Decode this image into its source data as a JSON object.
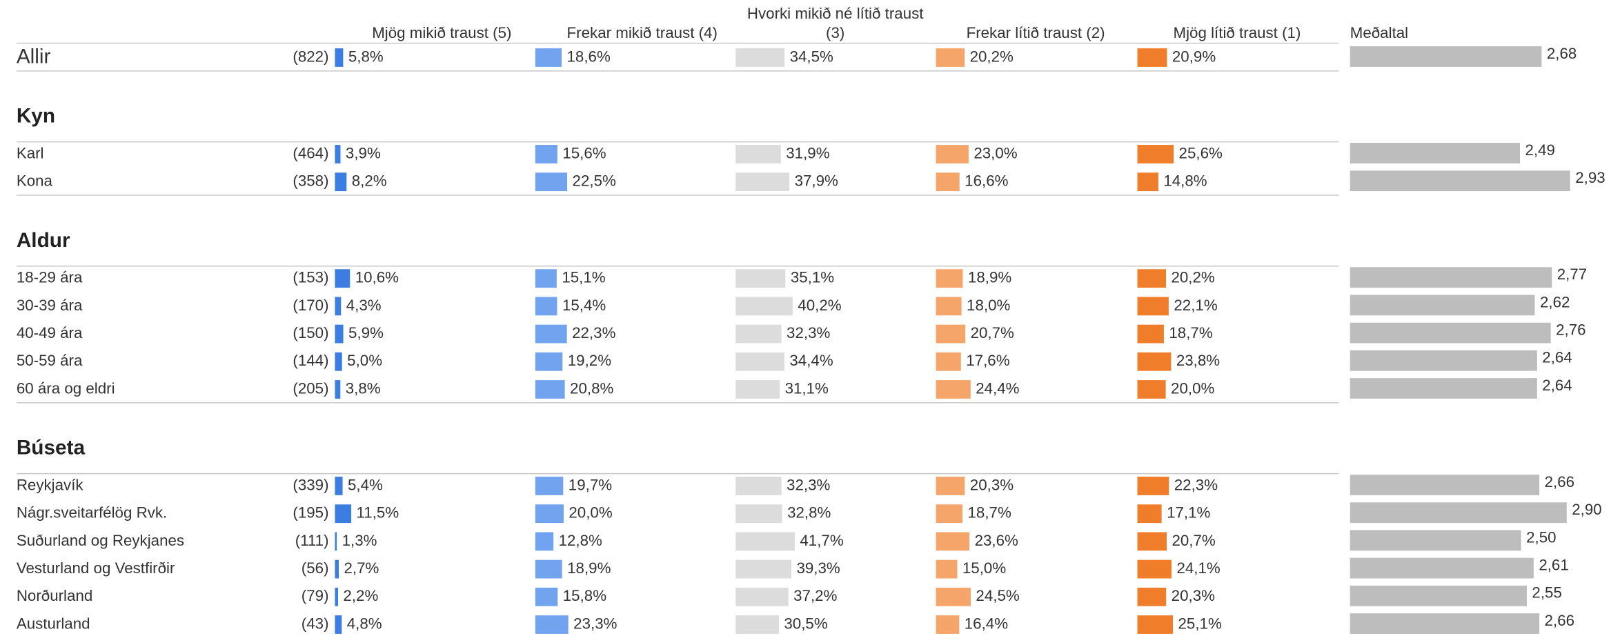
{
  "chart_data": {
    "type": "bar",
    "columns": [
      {
        "lines": [
          "Mjög mikið traust (5)"
        ],
        "color": "#3b7de0"
      },
      {
        "lines": [
          "Frekar mikið traust (4)"
        ],
        "color": "#72a3ef"
      },
      {
        "lines": [
          "Hvorki mikið né lítið traust",
          "(3)"
        ],
        "color": "#dcdcdc"
      },
      {
        "lines": [
          "Frekar lítið traust (2)"
        ],
        "color": "#f5a56a"
      },
      {
        "lines": [
          "Mjög lítið traust (1)"
        ],
        "color": "#f07d2a"
      }
    ],
    "xlim": [
      0,
      100
    ],
    "mean_title": "Meðaltal",
    "mean_color": "#bdbdbd",
    "mean_xlim": [
      1,
      3
    ],
    "groups": [
      {
        "rows": [
          {
            "label": "Allir",
            "n": "(822)",
            "values": [
              5.8,
              18.6,
              34.5,
              20.2,
              20.9
            ],
            "value_labels": [
              "5,8%",
              "18,6%",
              "34,5%",
              "20,2%",
              "20,9%"
            ],
            "mean": 2.68,
            "mean_label": "2,68"
          }
        ]
      },
      {
        "title": "Kyn",
        "rows": [
          {
            "label": "Karl",
            "n": "(464)",
            "values": [
              3.9,
              15.6,
              31.9,
              23.0,
              25.6
            ],
            "value_labels": [
              "3,9%",
              "15,6%",
              "31,9%",
              "23,0%",
              "25,6%"
            ],
            "mean": 2.49,
            "mean_label": "2,49"
          },
          {
            "label": "Kona",
            "n": "(358)",
            "values": [
              8.2,
              22.5,
              37.9,
              16.6,
              14.8
            ],
            "value_labels": [
              "8,2%",
              "22,5%",
              "37,9%",
              "16,6%",
              "14,8%"
            ],
            "mean": 2.93,
            "mean_label": "2,93"
          }
        ]
      },
      {
        "title": "Aldur",
        "rows": [
          {
            "label": "18-29 ára",
            "n": "(153)",
            "values": [
              10.6,
              15.1,
              35.1,
              18.9,
              20.2
            ],
            "value_labels": [
              "10,6%",
              "15,1%",
              "35,1%",
              "18,9%",
              "20,2%"
            ],
            "mean": 2.77,
            "mean_label": "2,77"
          },
          {
            "label": "30-39 ára",
            "n": "(170)",
            "values": [
              4.3,
              15.4,
              40.2,
              18.0,
              22.1
            ],
            "value_labels": [
              "4,3%",
              "15,4%",
              "40,2%",
              "18,0%",
              "22,1%"
            ],
            "mean": 2.62,
            "mean_label": "2,62"
          },
          {
            "label": "40-49 ára",
            "n": "(150)",
            "values": [
              5.9,
              22.3,
              32.3,
              20.7,
              18.7
            ],
            "value_labels": [
              "5,9%",
              "22,3%",
              "32,3%",
              "20,7%",
              "18,7%"
            ],
            "mean": 2.76,
            "mean_label": "2,76"
          },
          {
            "label": "50-59 ára",
            "n": "(144)",
            "values": [
              5.0,
              19.2,
              34.4,
              17.6,
              23.8
            ],
            "value_labels": [
              "5,0%",
              "19,2%",
              "34,4%",
              "17,6%",
              "23,8%"
            ],
            "mean": 2.64,
            "mean_label": "2,64"
          },
          {
            "label": "60 ára og eldri",
            "n": "(205)",
            "values": [
              3.8,
              20.8,
              31.1,
              24.4,
              20.0
            ],
            "value_labels": [
              "3,8%",
              "20,8%",
              "31,1%",
              "24,4%",
              "20,0%"
            ],
            "mean": 2.64,
            "mean_label": "2,64"
          }
        ]
      },
      {
        "title": "Búseta",
        "rows": [
          {
            "label": "Reykjavík",
            "n": "(339)",
            "values": [
              5.4,
              19.7,
              32.3,
              20.3,
              22.3
            ],
            "value_labels": [
              "5,4%",
              "19,7%",
              "32,3%",
              "20,3%",
              "22,3%"
            ],
            "mean": 2.66,
            "mean_label": "2,66"
          },
          {
            "label": "Nágr.sveitarfélög Rvk.",
            "n": "(195)",
            "values": [
              11.5,
              20.0,
              32.8,
              18.7,
              17.1
            ],
            "value_labels": [
              "11,5%",
              "20,0%",
              "32,8%",
              "18,7%",
              "17,1%"
            ],
            "mean": 2.9,
            "mean_label": "2,90"
          },
          {
            "label": "Suðurland og Reykjanes",
            "n": "(111)",
            "values": [
              1.3,
              12.8,
              41.7,
              23.6,
              20.7
            ],
            "value_labels": [
              "1,3%",
              "12,8%",
              "41,7%",
              "23,6%",
              "20,7%"
            ],
            "mean": 2.5,
            "mean_label": "2,50"
          },
          {
            "label": "Vesturland og Vestfirðir",
            "n": "(56)",
            "values": [
              2.7,
              18.9,
              39.3,
              15.0,
              24.1
            ],
            "value_labels": [
              "2,7%",
              "18,9%",
              "39,3%",
              "15,0%",
              "24,1%"
            ],
            "mean": 2.61,
            "mean_label": "2,61"
          },
          {
            "label": "Norðurland",
            "n": "(79)",
            "values": [
              2.2,
              15.8,
              37.2,
              24.5,
              20.3
            ],
            "value_labels": [
              "2,2%",
              "15,8%",
              "37,2%",
              "24,5%",
              "20,3%"
            ],
            "mean": 2.55,
            "mean_label": "2,55"
          },
          {
            "label": "Austurland",
            "n": "(43)",
            "values": [
              4.8,
              23.3,
              30.5,
              16.4,
              25.1
            ],
            "value_labels": [
              "4,8%",
              "23,3%",
              "30,5%",
              "16,4%",
              "25,1%"
            ],
            "mean": 2.66,
            "mean_label": "2,66"
          }
        ]
      }
    ]
  }
}
